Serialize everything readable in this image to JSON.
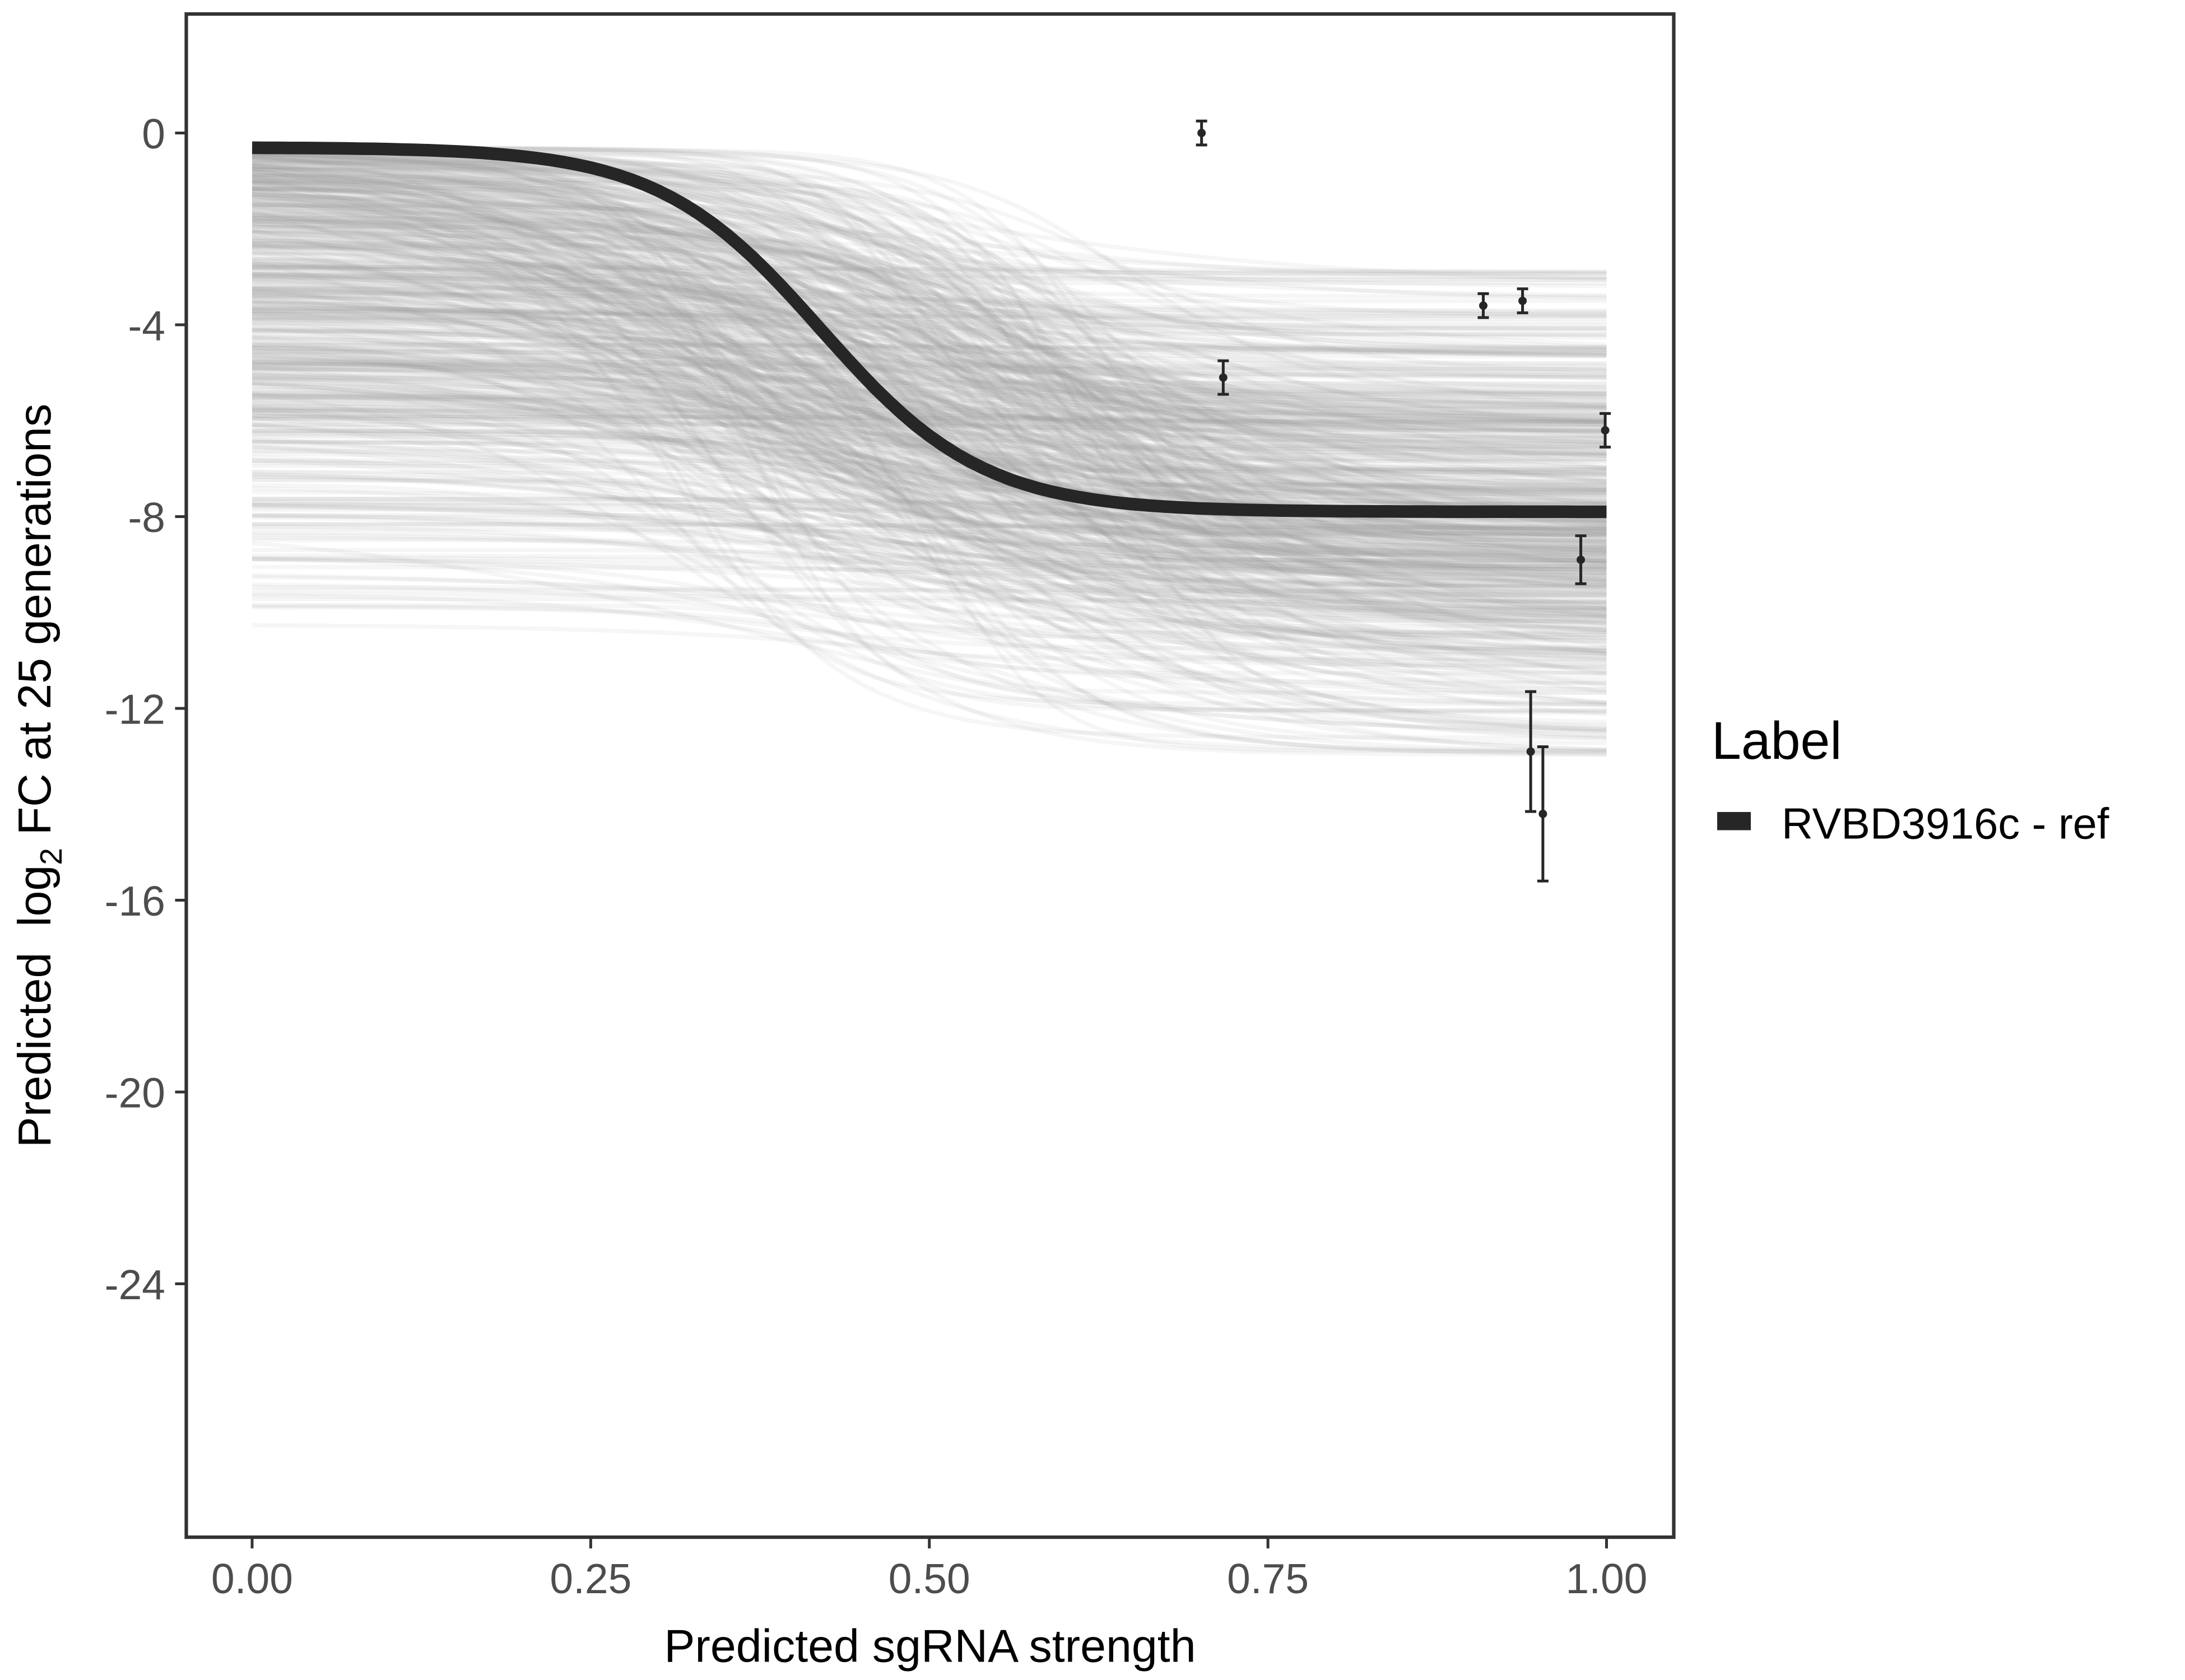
{
  "chart_data": {
    "type": "line",
    "title": "",
    "xlabel": "Predicted sgRNA strength",
    "ylabel": {
      "prefix": "Predicted  log",
      "sub": "2",
      "suffix": " FC at 25 generations"
    },
    "xlim": [
      -0.05,
      1.05
    ],
    "ylim": [
      -29.5,
      2.5
    ],
    "x_ticks": [
      {
        "value": 0,
        "label": "0.00"
      },
      {
        "value": 0.25,
        "label": "0.25"
      },
      {
        "value": 0.5,
        "label": "0.50"
      },
      {
        "value": 0.75,
        "label": "0.75"
      },
      {
        "value": 1,
        "label": "1.00"
      }
    ],
    "y_ticks": [
      {
        "value": 0,
        "label": "0"
      },
      {
        "value": -4,
        "label": "-4"
      },
      {
        "value": -8,
        "label": "-8"
      },
      {
        "value": -12,
        "label": "-12"
      },
      {
        "value": -16,
        "label": "-16"
      },
      {
        "value": -20,
        "label": "-20"
      },
      {
        "value": -24,
        "label": "-24"
      }
    ],
    "grid": false,
    "legend": {
      "title": "Label",
      "placement": "right",
      "entries": [
        {
          "label": "RVBD3916c - ref",
          "color": "#262626"
        }
      ]
    },
    "fit_curve": {
      "name": "RVBD3916c - ref",
      "start": -0.3,
      "plateau": -7.9,
      "midpoint": 0.42,
      "scale": 0.06,
      "color": "#262626"
    },
    "posterior_samples": {
      "count": 600,
      "color": "#a0a0a0",
      "start_range": [
        -10.6,
        -0.3
      ],
      "plateau_range": [
        -16,
        -1.3
      ]
    },
    "points": [
      {
        "x": 0.701,
        "y": 0.0,
        "err": 0.25
      },
      {
        "x": 0.717,
        "y": -5.1,
        "err": 0.35
      },
      {
        "x": 0.909,
        "y": -3.6,
        "err": 0.25
      },
      {
        "x": 0.938,
        "y": -3.5,
        "err": 0.25
      },
      {
        "x": 0.999,
        "y": -6.2,
        "err": 0.35
      },
      {
        "x": 0.981,
        "y": -8.9,
        "err": 0.5
      },
      {
        "x": 0.944,
        "y": -12.9,
        "err": 1.25
      },
      {
        "x": 0.953,
        "y": -14.2,
        "err": 1.4
      }
    ]
  }
}
